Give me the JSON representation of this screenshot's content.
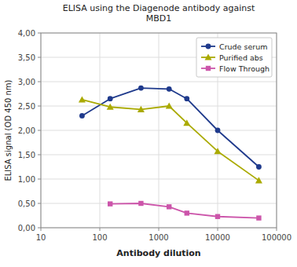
{
  "chart_data": {
    "type": "line",
    "title": "ELISA using the Diagenode antibody against\nMBD1",
    "x_label": "Antibody dilution",
    "y_label": "ELISA signal (OD 450 nm)",
    "log": "x",
    "grid": true,
    "legend": "upper right",
    "xlim": [
      10,
      100000
    ],
    "xticks": [
      10,
      100,
      1000,
      10000,
      100000
    ],
    "ylim": [
      0.0,
      4.0
    ],
    "yticks": [
      {
        "value": 0.0,
        "label": "0,00"
      },
      {
        "value": 0.5,
        "label": "0,50"
      },
      {
        "value": 1.0,
        "label": "1,00"
      },
      {
        "value": 1.5,
        "label": "1,50"
      },
      {
        "value": 2.0,
        "label": "2,00"
      },
      {
        "value": 2.5,
        "label": "2,50"
      },
      {
        "value": 3.0,
        "label": "3,00"
      },
      {
        "value": 3.5,
        "label": "3,50"
      },
      {
        "value": 4.0,
        "label": "4,00"
      }
    ],
    "series": [
      {
        "name": "Crude serum",
        "color": "#1F3A8C",
        "marker": "circle",
        "x": [
          50,
          150,
          500,
          1500,
          3000,
          10000,
          50000
        ],
        "values": [
          2.3,
          2.65,
          2.87,
          2.85,
          2.65,
          2.0,
          1.25
        ]
      },
      {
        "name": "Purified abs",
        "color": "#AAAA00",
        "marker": "triangle",
        "x": [
          50,
          150,
          500,
          1500,
          3000,
          10000,
          50000
        ],
        "values": [
          2.63,
          2.48,
          2.43,
          2.5,
          2.15,
          1.57,
          0.97
        ]
      },
      {
        "name": "Flow Through",
        "color": "#CC55AA",
        "marker": "square",
        "x": [
          150,
          500,
          1500,
          3000,
          10000,
          50000
        ],
        "values": [
          0.49,
          0.5,
          0.43,
          0.3,
          0.23,
          0.2
        ]
      }
    ]
  }
}
